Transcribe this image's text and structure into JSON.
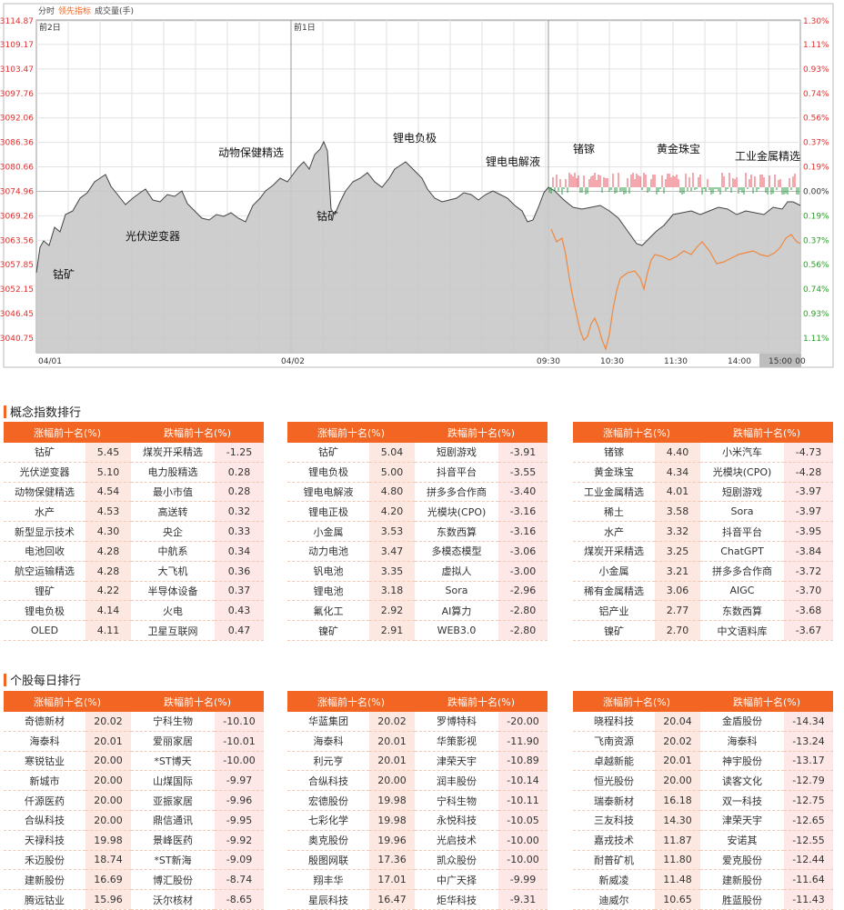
{
  "chart": {
    "tabs": [
      "分时",
      "领先指标",
      "成交量(手)"
    ],
    "active_tab": 1,
    "y_left": [
      "3114.87",
      "3109.17",
      "3103.47",
      "3097.76",
      "3092.06",
      "3086.36",
      "3080.66",
      "3074.96",
      "3069.26",
      "3063.56",
      "3057.85",
      "3052.15",
      "3046.45",
      "3040.75"
    ],
    "y_right": [
      "1.30%",
      "1.11%",
      "0.93%",
      "0.74%",
      "0.56%",
      "0.37%",
      "0.19%",
      "0.00%",
      "0.19%",
      "0.37%",
      "0.56%",
      "0.74%",
      "0.93%",
      "1.11%"
    ],
    "y_right_colors": [
      "#e03030",
      "#e03030",
      "#e03030",
      "#e03030",
      "#e03030",
      "#e03030",
      "#e03030",
      "#333333",
      "#2a9d2a",
      "#2a9d2a",
      "#2a9d2a",
      "#2a9d2a",
      "#2a9d2a",
      "#2a9d2a"
    ],
    "x_labels": [
      "04/01",
      "04/02",
      "09:30",
      "10:30",
      "11:30",
      "14:00",
      "15:00",
      "00"
    ],
    "day_labels": [
      "前2日",
      "前1日"
    ],
    "annotations": [
      "钴矿",
      "光伏逆变器",
      "动物保健精选",
      "钴矿",
      "锂电负极",
      "锂电电解液",
      "锗镓",
      "黄金珠宝",
      "工业金属精选"
    ],
    "colors": {
      "line": "#444444",
      "area": "#c9c9c9",
      "lead": "#f0883e",
      "up": "#e8505b",
      "down": "#2f9b46",
      "grid": "#e2e2e2"
    }
  },
  "chart_data": {
    "type": "line",
    "x": [
      "04/01",
      "04/02",
      "09:30",
      "10:30",
      "11:30",
      "14:00",
      "15:00"
    ],
    "ylim": [
      3040.75,
      3114.87
    ],
    "reference": 3074.96,
    "series": [],
    "notes_shown": [
      "钴矿",
      "光伏逆变器",
      "动物保健精选",
      "钴矿",
      "锂电负极",
      "锂电电解液",
      "锗镓",
      "黄金珠宝",
      "工业金属精选"
    ]
  },
  "concept": {
    "title": "概念指数排行",
    "header_up": "涨幅前十名(%)",
    "header_down": "跌幅前十名(%)",
    "tables": [
      [
        [
          "钴矿",
          "5.45",
          "煤炭开采精选",
          "-1.25"
        ],
        [
          "光伏逆变器",
          "5.10",
          "电力股精选",
          "0.28"
        ],
        [
          "动物保健精选",
          "4.54",
          "最小市值",
          "0.28"
        ],
        [
          "水产",
          "4.53",
          "高送转",
          "0.32"
        ],
        [
          "新型显示技术",
          "4.30",
          "央企",
          "0.33"
        ],
        [
          "电池回收",
          "4.28",
          "中航系",
          "0.34"
        ],
        [
          "航空运输精选",
          "4.28",
          "大飞机",
          "0.36"
        ],
        [
          "锂矿",
          "4.22",
          "半导体设备",
          "0.37"
        ],
        [
          "锂电负极",
          "4.14",
          "火电",
          "0.43"
        ],
        [
          "OLED",
          "4.11",
          "卫星互联网",
          "0.47"
        ]
      ],
      [
        [
          "钴矿",
          "5.04",
          "短剧游戏",
          "-3.91"
        ],
        [
          "锂电负极",
          "5.00",
          "抖音平台",
          "-3.55"
        ],
        [
          "锂电电解液",
          "4.80",
          "拼多多合作商",
          "-3.40"
        ],
        [
          "锂电正极",
          "4.20",
          "光模块(CPO)",
          "-3.16"
        ],
        [
          "小金属",
          "3.53",
          "东数西算",
          "-3.16"
        ],
        [
          "动力电池",
          "3.47",
          "多模态模型",
          "-3.06"
        ],
        [
          "钒电池",
          "3.35",
          "虚拟人",
          "-3.00"
        ],
        [
          "锂电池",
          "3.18",
          "Sora",
          "-2.96"
        ],
        [
          "氟化工",
          "2.92",
          "AI算力",
          "-2.80"
        ],
        [
          "镍矿",
          "2.91",
          "WEB3.0",
          "-2.80"
        ]
      ],
      [
        [
          "锗镓",
          "4.40",
          "小米汽车",
          "-4.73"
        ],
        [
          "黄金珠宝",
          "4.34",
          "光模块(CPO)",
          "-4.28"
        ],
        [
          "工业金属精选",
          "4.01",
          "短剧游戏",
          "-3.97"
        ],
        [
          "稀土",
          "3.58",
          "Sora",
          "-3.97"
        ],
        [
          "水产",
          "3.32",
          "抖音平台",
          "-3.95"
        ],
        [
          "煤炭开采精选",
          "3.25",
          "ChatGPT",
          "-3.84"
        ],
        [
          "小金属",
          "3.21",
          "拼多多合作商",
          "-3.72"
        ],
        [
          "稀有金属精选",
          "3.06",
          "AIGC",
          "-3.70"
        ],
        [
          "铝产业",
          "2.77",
          "东数西算",
          "-3.68"
        ],
        [
          "镍矿",
          "2.70",
          "中文语料库",
          "-3.67"
        ]
      ]
    ]
  },
  "stocks": {
    "title": "个股每日排行",
    "header_up": "涨幅前十名(%)",
    "header_down": "跌幅前十名(%)",
    "tables": [
      [
        [
          "奇德新材",
          "20.02",
          "宁科生物",
          "-10.10"
        ],
        [
          "海泰科",
          "20.01",
          "爱丽家居",
          "-10.01"
        ],
        [
          "寒锐钴业",
          "20.00",
          "*ST博天",
          "-10.00"
        ],
        [
          "新城市",
          "20.00",
          "山煤国际",
          "-9.97"
        ],
        [
          "仟源医药",
          "20.00",
          "亚振家居",
          "-9.96"
        ],
        [
          "合纵科技",
          "20.00",
          "鼎信通讯",
          "-9.95"
        ],
        [
          "天禄科技",
          "19.98",
          "景峰医药",
          "-9.92"
        ],
        [
          "禾迈股份",
          "18.74",
          "*ST新海",
          "-9.09"
        ],
        [
          "建新股份",
          "16.69",
          "博汇股份",
          "-8.74"
        ],
        [
          "腾远钴业",
          "15.96",
          "沃尔核材",
          "-8.65"
        ]
      ],
      [
        [
          "华蓝集团",
          "20.02",
          "罗博特科",
          "-20.00"
        ],
        [
          "海泰科",
          "20.01",
          "华策影视",
          "-11.90"
        ],
        [
          "利元亨",
          "20.01",
          "津荣天宇",
          "-10.89"
        ],
        [
          "合纵科技",
          "20.00",
          "润丰股份",
          "-10.14"
        ],
        [
          "宏德股份",
          "19.98",
          "宁科生物",
          "-10.11"
        ],
        [
          "七彩化学",
          "19.98",
          "永悦科技",
          "-10.05"
        ],
        [
          "奥克股份",
          "19.96",
          "光启技术",
          "-10.00"
        ],
        [
          "殷图网联",
          "17.36",
          "凯众股份",
          "-10.00"
        ],
        [
          "翔丰华",
          "17.01",
          "中广天择",
          "-9.99"
        ],
        [
          "星辰科技",
          "16.47",
          "炬华科技",
          "-9.31"
        ]
      ],
      [
        [
          "晓程科技",
          "20.04",
          "金盾股份",
          "-14.34"
        ],
        [
          "飞南资源",
          "20.02",
          "海泰科",
          "-13.24"
        ],
        [
          "卓越新能",
          "20.01",
          "神宇股份",
          "-13.17"
        ],
        [
          "恒光股份",
          "20.00",
          "读客文化",
          "-12.79"
        ],
        [
          "瑞泰新材",
          "16.18",
          "双一科技",
          "-12.75"
        ],
        [
          "三友科技",
          "14.30",
          "津荣天宇",
          "-12.65"
        ],
        [
          "嘉戎技术",
          "11.87",
          "安诺其",
          "-12.55"
        ],
        [
          "耐普矿机",
          "11.80",
          "爱克股份",
          "-12.44"
        ],
        [
          "新威凌",
          "11.48",
          "建新股份",
          "-11.64"
        ],
        [
          "迪威尔",
          "10.65",
          "胜蓝股份",
          "-11.43"
        ]
      ]
    ]
  }
}
